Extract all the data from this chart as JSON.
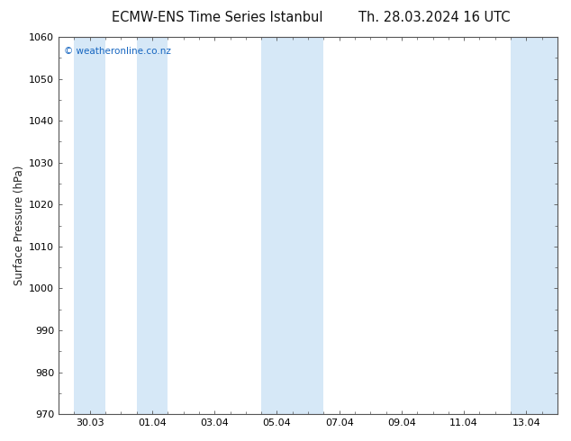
{
  "title_left": "ECMW-ENS Time Series Istanbul",
  "title_right": "Th. 28.03.2024 16 UTC",
  "ylabel": "Surface Pressure (hPa)",
  "ylim": [
    970,
    1060
  ],
  "yticks": [
    970,
    980,
    990,
    1000,
    1010,
    1020,
    1030,
    1040,
    1050,
    1060
  ],
  "xtick_labels": [
    "30.03",
    "01.04",
    "03.04",
    "05.04",
    "07.04",
    "09.04",
    "11.04",
    "13.04"
  ],
  "xtick_positions_days": [
    1.0,
    3.0,
    5.0,
    7.0,
    9.0,
    11.0,
    13.0,
    15.0
  ],
  "xlim_days": [
    0,
    16
  ],
  "shaded_bands": [
    {
      "x_start": 0.5,
      "x_end": 1.5
    },
    {
      "x_start": 2.5,
      "x_end": 3.5
    },
    {
      "x_start": 6.5,
      "x_end": 8.5
    },
    {
      "x_start": 14.5,
      "x_end": 16.0
    }
  ],
  "band_color": "#d6e8f7",
  "background_color": "#ffffff",
  "watermark": "© weatheronline.co.nz",
  "watermark_color": "#1565c0",
  "title_fontsize": 10.5,
  "label_fontsize": 8.5,
  "tick_fontsize": 8,
  "watermark_fontsize": 7.5
}
